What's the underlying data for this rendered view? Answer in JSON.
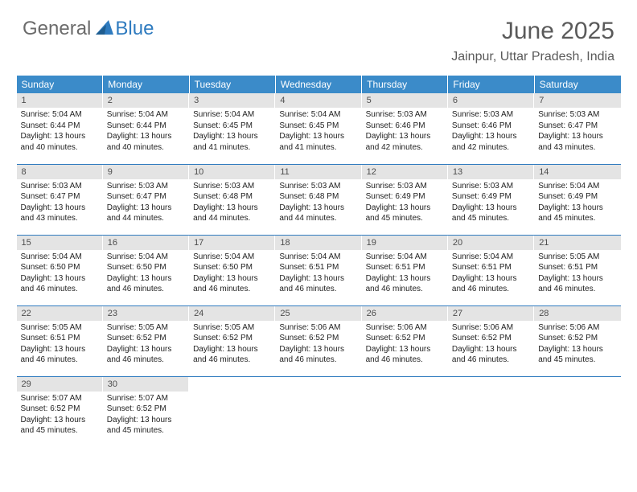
{
  "logo": {
    "partA": "General",
    "partB": "Blue",
    "triangleColor": "#2f7bbf"
  },
  "title": "June 2025",
  "location": "Jainpur, Uttar Pradesh, India",
  "headerBg": "#3b8bc9",
  "dayBarBg": "#e4e4e4",
  "ruleColor": "#2f7bbf",
  "weekdays": [
    "Sunday",
    "Monday",
    "Tuesday",
    "Wednesday",
    "Thursday",
    "Friday",
    "Saturday"
  ],
  "weeks": [
    [
      {
        "n": "1",
        "sr": "Sunrise: 5:04 AM",
        "ss": "Sunset: 6:44 PM",
        "d1": "Daylight: 13 hours",
        "d2": "and 40 minutes."
      },
      {
        "n": "2",
        "sr": "Sunrise: 5:04 AM",
        "ss": "Sunset: 6:44 PM",
        "d1": "Daylight: 13 hours",
        "d2": "and 40 minutes."
      },
      {
        "n": "3",
        "sr": "Sunrise: 5:04 AM",
        "ss": "Sunset: 6:45 PM",
        "d1": "Daylight: 13 hours",
        "d2": "and 41 minutes."
      },
      {
        "n": "4",
        "sr": "Sunrise: 5:04 AM",
        "ss": "Sunset: 6:45 PM",
        "d1": "Daylight: 13 hours",
        "d2": "and 41 minutes."
      },
      {
        "n": "5",
        "sr": "Sunrise: 5:03 AM",
        "ss": "Sunset: 6:46 PM",
        "d1": "Daylight: 13 hours",
        "d2": "and 42 minutes."
      },
      {
        "n": "6",
        "sr": "Sunrise: 5:03 AM",
        "ss": "Sunset: 6:46 PM",
        "d1": "Daylight: 13 hours",
        "d2": "and 42 minutes."
      },
      {
        "n": "7",
        "sr": "Sunrise: 5:03 AM",
        "ss": "Sunset: 6:47 PM",
        "d1": "Daylight: 13 hours",
        "d2": "and 43 minutes."
      }
    ],
    [
      {
        "n": "8",
        "sr": "Sunrise: 5:03 AM",
        "ss": "Sunset: 6:47 PM",
        "d1": "Daylight: 13 hours",
        "d2": "and 43 minutes."
      },
      {
        "n": "9",
        "sr": "Sunrise: 5:03 AM",
        "ss": "Sunset: 6:47 PM",
        "d1": "Daylight: 13 hours",
        "d2": "and 44 minutes."
      },
      {
        "n": "10",
        "sr": "Sunrise: 5:03 AM",
        "ss": "Sunset: 6:48 PM",
        "d1": "Daylight: 13 hours",
        "d2": "and 44 minutes."
      },
      {
        "n": "11",
        "sr": "Sunrise: 5:03 AM",
        "ss": "Sunset: 6:48 PM",
        "d1": "Daylight: 13 hours",
        "d2": "and 44 minutes."
      },
      {
        "n": "12",
        "sr": "Sunrise: 5:03 AM",
        "ss": "Sunset: 6:49 PM",
        "d1": "Daylight: 13 hours",
        "d2": "and 45 minutes."
      },
      {
        "n": "13",
        "sr": "Sunrise: 5:03 AM",
        "ss": "Sunset: 6:49 PM",
        "d1": "Daylight: 13 hours",
        "d2": "and 45 minutes."
      },
      {
        "n": "14",
        "sr": "Sunrise: 5:04 AM",
        "ss": "Sunset: 6:49 PM",
        "d1": "Daylight: 13 hours",
        "d2": "and 45 minutes."
      }
    ],
    [
      {
        "n": "15",
        "sr": "Sunrise: 5:04 AM",
        "ss": "Sunset: 6:50 PM",
        "d1": "Daylight: 13 hours",
        "d2": "and 46 minutes."
      },
      {
        "n": "16",
        "sr": "Sunrise: 5:04 AM",
        "ss": "Sunset: 6:50 PM",
        "d1": "Daylight: 13 hours",
        "d2": "and 46 minutes."
      },
      {
        "n": "17",
        "sr": "Sunrise: 5:04 AM",
        "ss": "Sunset: 6:50 PM",
        "d1": "Daylight: 13 hours",
        "d2": "and 46 minutes."
      },
      {
        "n": "18",
        "sr": "Sunrise: 5:04 AM",
        "ss": "Sunset: 6:51 PM",
        "d1": "Daylight: 13 hours",
        "d2": "and 46 minutes."
      },
      {
        "n": "19",
        "sr": "Sunrise: 5:04 AM",
        "ss": "Sunset: 6:51 PM",
        "d1": "Daylight: 13 hours",
        "d2": "and 46 minutes."
      },
      {
        "n": "20",
        "sr": "Sunrise: 5:04 AM",
        "ss": "Sunset: 6:51 PM",
        "d1": "Daylight: 13 hours",
        "d2": "and 46 minutes."
      },
      {
        "n": "21",
        "sr": "Sunrise: 5:05 AM",
        "ss": "Sunset: 6:51 PM",
        "d1": "Daylight: 13 hours",
        "d2": "and 46 minutes."
      }
    ],
    [
      {
        "n": "22",
        "sr": "Sunrise: 5:05 AM",
        "ss": "Sunset: 6:51 PM",
        "d1": "Daylight: 13 hours",
        "d2": "and 46 minutes."
      },
      {
        "n": "23",
        "sr": "Sunrise: 5:05 AM",
        "ss": "Sunset: 6:52 PM",
        "d1": "Daylight: 13 hours",
        "d2": "and 46 minutes."
      },
      {
        "n": "24",
        "sr": "Sunrise: 5:05 AM",
        "ss": "Sunset: 6:52 PM",
        "d1": "Daylight: 13 hours",
        "d2": "and 46 minutes."
      },
      {
        "n": "25",
        "sr": "Sunrise: 5:06 AM",
        "ss": "Sunset: 6:52 PM",
        "d1": "Daylight: 13 hours",
        "d2": "and 46 minutes."
      },
      {
        "n": "26",
        "sr": "Sunrise: 5:06 AM",
        "ss": "Sunset: 6:52 PM",
        "d1": "Daylight: 13 hours",
        "d2": "and 46 minutes."
      },
      {
        "n": "27",
        "sr": "Sunrise: 5:06 AM",
        "ss": "Sunset: 6:52 PM",
        "d1": "Daylight: 13 hours",
        "d2": "and 46 minutes."
      },
      {
        "n": "28",
        "sr": "Sunrise: 5:06 AM",
        "ss": "Sunset: 6:52 PM",
        "d1": "Daylight: 13 hours",
        "d2": "and 45 minutes."
      }
    ],
    [
      {
        "n": "29",
        "sr": "Sunrise: 5:07 AM",
        "ss": "Sunset: 6:52 PM",
        "d1": "Daylight: 13 hours",
        "d2": "and 45 minutes."
      },
      {
        "n": "30",
        "sr": "Sunrise: 5:07 AM",
        "ss": "Sunset: 6:52 PM",
        "d1": "Daylight: 13 hours",
        "d2": "and 45 minutes."
      },
      null,
      null,
      null,
      null,
      null
    ]
  ]
}
